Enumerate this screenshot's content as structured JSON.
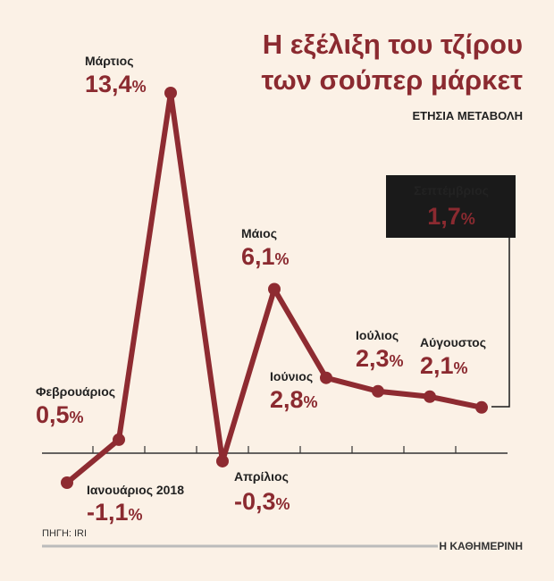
{
  "chart_data": {
    "type": "line",
    "title": [
      "Η εξέλιξη του τζίρου",
      "των σούπερ μάρκετ"
    ],
    "subtitle": "ΕΤΗΣΙΑ ΜΕΤΑΒΟΛΗ",
    "categories": [
      "Ιανουάριος 2018",
      "Φεβρουάριος",
      "Μάρτιος",
      "Απρίλιος",
      "Μάιος",
      "Ιούνιος",
      "Ιούλιος",
      "Αύγουστος",
      "Σεπτέμβριος"
    ],
    "values": [
      -1.1,
      0.5,
      13.4,
      -0.3,
      6.1,
      2.8,
      2.3,
      2.1,
      1.7
    ],
    "value_labels": [
      "-1,1%",
      "0,5%",
      "13,4%",
      "-0,3%",
      "6,1%",
      "2,8%",
      "2,3%",
      "2,1%",
      "1,7%"
    ],
    "color": "#8e2b31",
    "source": "ΠΗΓΗ: IRI",
    "brand": "Η ΚΑΘΗΜΕΡΙΝΗ"
  }
}
